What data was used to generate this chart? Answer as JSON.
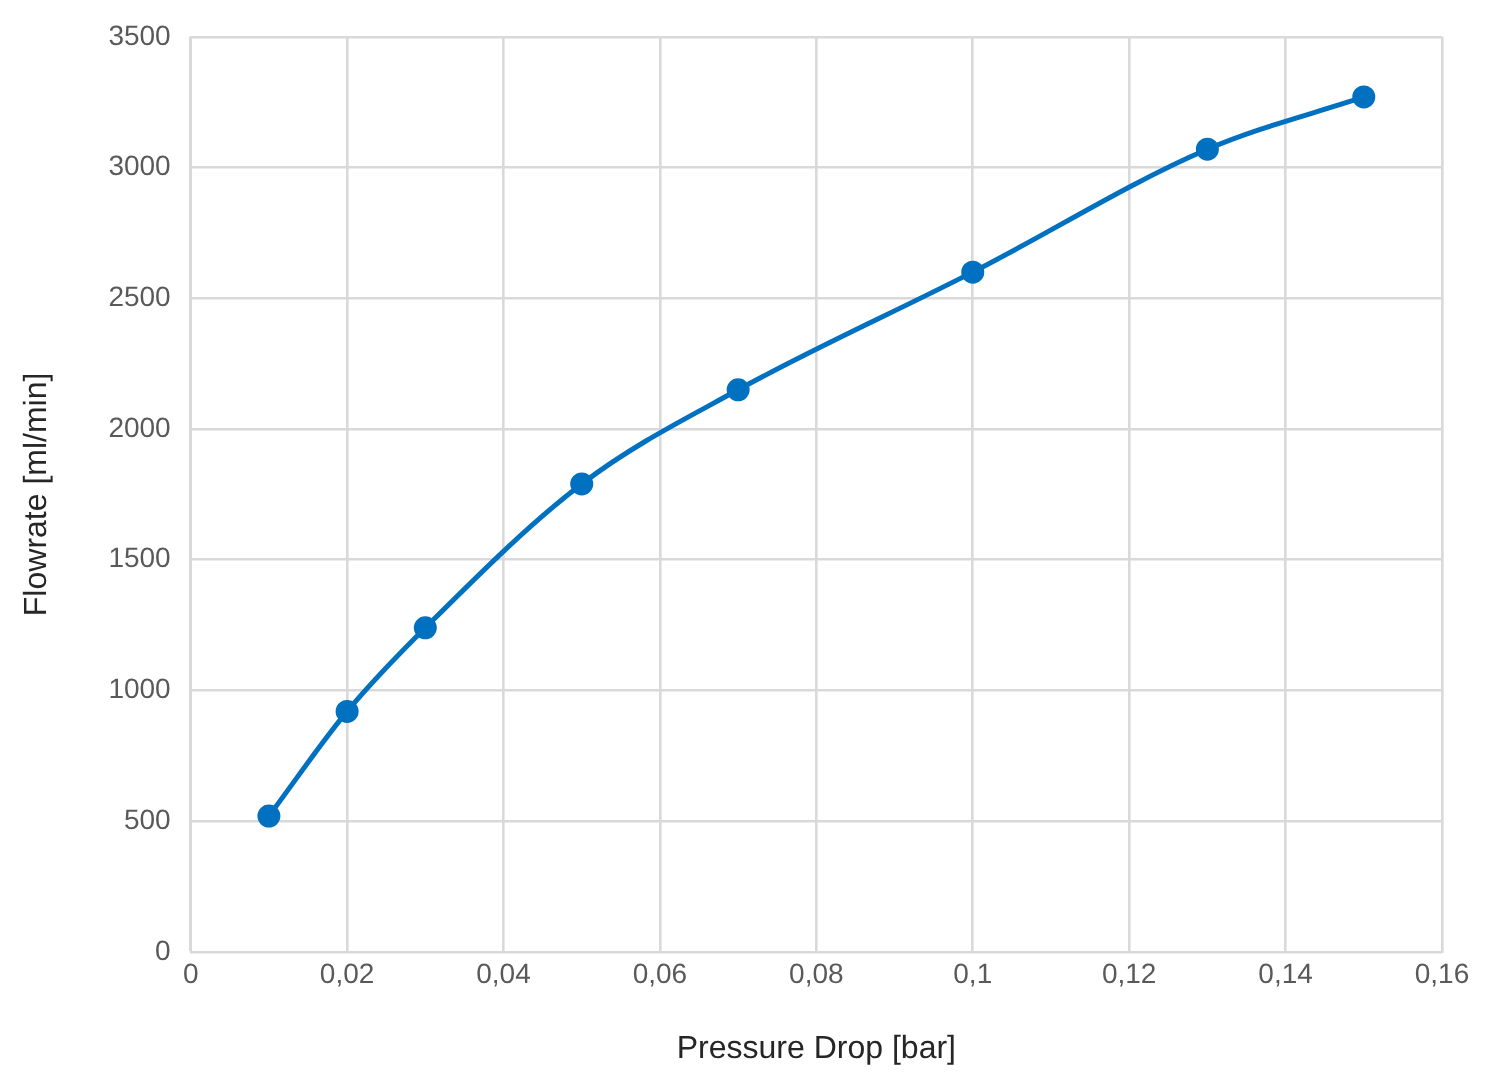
{
  "chart_data": {
    "type": "line",
    "xlabel": "Pressure Drop [bar]",
    "ylabel": "Flowrate [ml/min]",
    "x": [
      0.01,
      0.02,
      0.03,
      0.05,
      0.07,
      0.1,
      0.13,
      0.15
    ],
    "series": [
      {
        "color": "#0070c0",
        "values": [
          520,
          920,
          1240,
          1790,
          2150,
          2600,
          3070,
          3270
        ]
      }
    ],
    "xlim": [
      0,
      0.16
    ],
    "xticks": [
      0,
      {
        "value": 0.02,
        "label": "0,02"
      },
      {
        "value": 0.04,
        "label": "0,04"
      },
      {
        "value": 0.06,
        "label": "0,06"
      },
      {
        "value": 0.08,
        "label": "0,08"
      },
      {
        "value": 0.1,
        "label": "0,1"
      },
      {
        "value": 0.12,
        "label": "0,12"
      },
      {
        "value": 0.14,
        "label": "0,14"
      },
      {
        "value": 0.16,
        "label": "0,16"
      }
    ],
    "ylim": [
      0,
      3500
    ],
    "yticks": [
      0,
      500,
      1000,
      1500,
      2000,
      2500,
      3000,
      3500
    ],
    "grid": true,
    "legend": false,
    "marker": "circle",
    "line_style": "solid"
  }
}
